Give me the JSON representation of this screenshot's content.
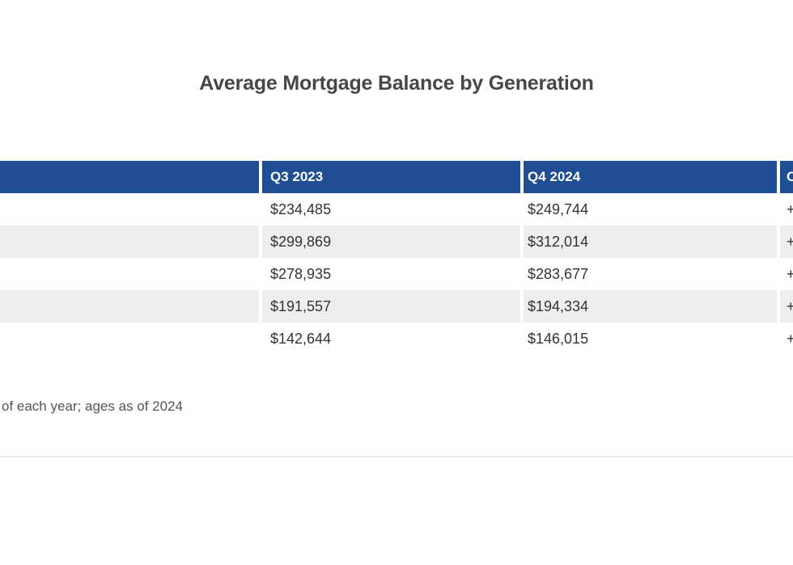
{
  "title": "Average Mortgage Balance by Generation",
  "table": {
    "columns": [
      {
        "label": ""
      },
      {
        "label": "Q3 2023"
      },
      {
        "label": "Q4 2024"
      },
      {
        "label": "Change"
      }
    ],
    "rows": [
      {
        "generation": "",
        "q3_2023": "$234,485",
        "q4_2024": "$249,744",
        "change": "+"
      },
      {
        "generation": "",
        "q3_2023": "$299,869",
        "q4_2024": "$312,014",
        "change": "+"
      },
      {
        "generation": "",
        "q3_2023": "$278,935",
        "q4_2024": "$283,677",
        "change": "+"
      },
      {
        "generation": "",
        "q3_2023": "$191,557",
        "q4_2024": "$194,334",
        "change": "+"
      },
      {
        "generation": "",
        "q3_2023": "$142,644",
        "q4_2024": "$146,015",
        "change": "+"
      }
    ]
  },
  "source_note": "of each year; ages as of 2024",
  "colors": {
    "header_bg": "#1F4E95",
    "header_text": "#FFFFFF",
    "row_alt_bg": "#EEEEEE",
    "cell_text": "#333333",
    "title_text": "#474747",
    "note_text": "#545454",
    "divider": "#E9E9E9"
  },
  "chart_data": {
    "type": "table",
    "title": "Average Mortgage Balance by Generation",
    "columns": [
      "Q3 2023",
      "Q4 2024",
      "Change"
    ],
    "series": [
      {
        "name": "Q3 2023",
        "values": [
          234485,
          299869,
          278935,
          191557,
          142644
        ]
      },
      {
        "name": "Q4 2024",
        "values": [
          249744,
          312014,
          283677,
          194334,
          146015
        ]
      }
    ],
    "note": "of each year; ages as of 2024",
    "layout": "striped rows, blue header, first column and change column cut off by viewport edges"
  }
}
